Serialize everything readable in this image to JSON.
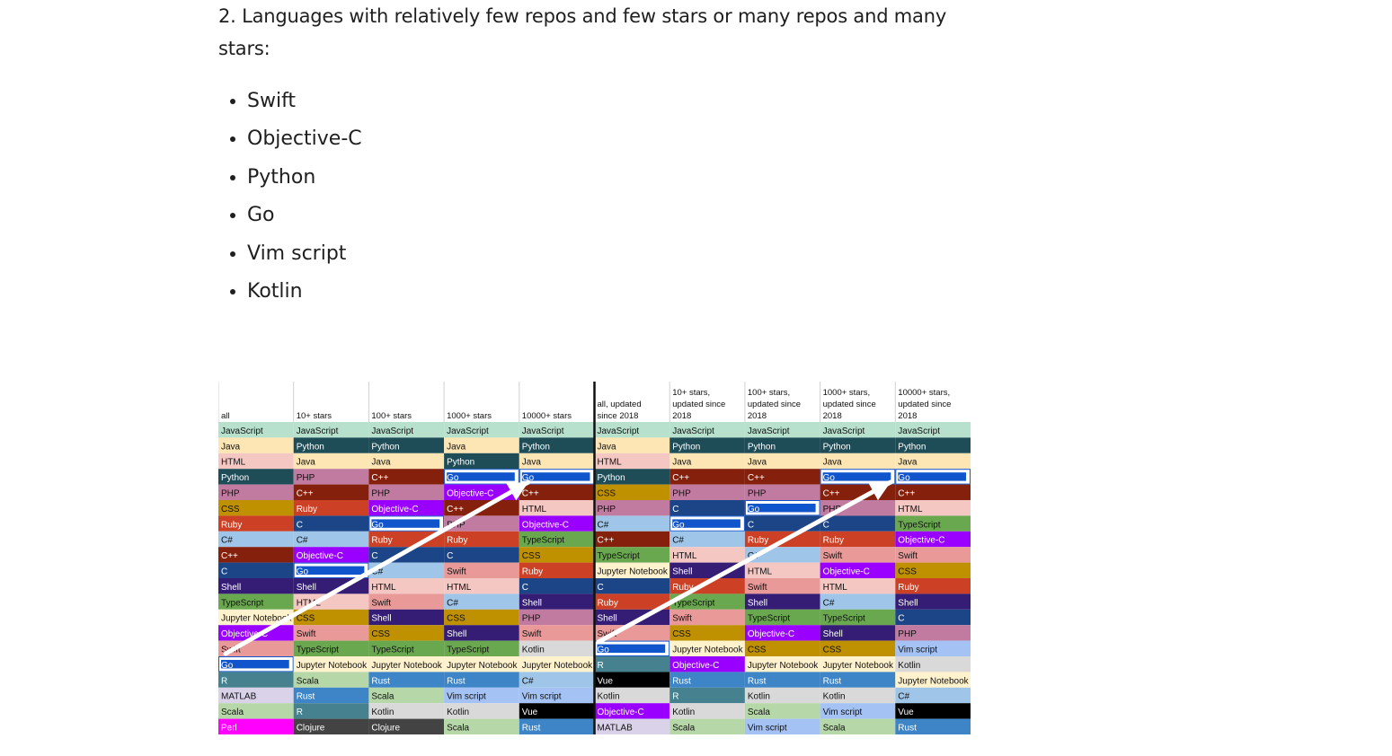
{
  "article": {
    "heading": "2. Languages with relatively few repos and few stars or many repos and many stars:",
    "languages": [
      "Swift",
      "Objective-C",
      "Python",
      "Go",
      "Vim script",
      "Kotlin"
    ]
  },
  "ranking_table": {
    "columns": [
      {
        "header": [
          "all"
        ],
        "rows": [
          "JavaScript",
          "Java",
          "HTML",
          "Python",
          "PHP",
          "CSS",
          "Ruby",
          "C#",
          "C++",
          "C",
          "Shell",
          "TypeScript",
          "Jupyter Notebook",
          "Objective-C",
          "Swift",
          "Go",
          "R",
          "MATLAB",
          "Scala",
          "Perl"
        ]
      },
      {
        "header": [
          "10+ stars"
        ],
        "rows": [
          "JavaScript",
          "Python",
          "Java",
          "PHP",
          "C++",
          "Ruby",
          "C",
          "C#",
          "Objective-C",
          "Go",
          "Shell",
          "HTML",
          "CSS",
          "Swift",
          "TypeScript",
          "Jupyter Notebook",
          "Scala",
          "Rust",
          "R",
          "Clojure"
        ]
      },
      {
        "header": [
          "100+ stars"
        ],
        "rows": [
          "JavaScript",
          "Python",
          "Java",
          "C++",
          "PHP",
          "Objective-C",
          "Go",
          "Ruby",
          "C",
          "C#",
          "HTML",
          "Swift",
          "Shell",
          "CSS",
          "TypeScript",
          "Jupyter Notebook",
          "Rust",
          "Scala",
          "Kotlin",
          "Clojure"
        ]
      },
      {
        "header": [
          "1000+ stars"
        ],
        "rows": [
          "JavaScript",
          "Java",
          "Python",
          "Go",
          "Objective-C",
          "C++",
          "PHP",
          "Ruby",
          "C",
          "Swift",
          "HTML",
          "C#",
          "CSS",
          "Shell",
          "TypeScript",
          "Jupyter Notebook",
          "Rust",
          "Vim script",
          "Kotlin",
          "Scala"
        ]
      },
      {
        "header": [
          "10000+ stars"
        ],
        "rows": [
          "JavaScript",
          "Python",
          "Java",
          "Go",
          "C++",
          "HTML",
          "Objective-C",
          "TypeScript",
          "CSS",
          "Ruby",
          "C",
          "Shell",
          "PHP",
          "Swift",
          "Kotlin",
          "Jupyter Notebook",
          "C#",
          "Vim script",
          "Vue",
          "Rust"
        ]
      },
      {
        "header": [
          "all, updated",
          "since 2018"
        ],
        "rows": [
          "JavaScript",
          "Java",
          "HTML",
          "Python",
          "CSS",
          "PHP",
          "C#",
          "C++",
          "TypeScript",
          "Jupyter Notebook",
          "C",
          "Ruby",
          "Shell",
          "Swift",
          "Go",
          "R",
          "Vue",
          "Kotlin",
          "Objective-C",
          "MATLAB"
        ]
      },
      {
        "header": [
          "10+ stars,",
          "updated since",
          "2018"
        ],
        "rows": [
          "JavaScript",
          "Python",
          "Java",
          "C++",
          "PHP",
          "C",
          "Go",
          "C#",
          "HTML",
          "Shell",
          "Ruby",
          "TypeScript",
          "Swift",
          "CSS",
          "Jupyter Notebook",
          "Objective-C",
          "Rust",
          "R",
          "Kotlin",
          "Scala"
        ]
      },
      {
        "header": [
          "100+ stars,",
          "updated since",
          "2018"
        ],
        "rows": [
          "JavaScript",
          "Python",
          "Java",
          "C++",
          "PHP",
          "Go",
          "C",
          "Ruby",
          "C#",
          "HTML",
          "Swift",
          "Shell",
          "TypeScript",
          "Objective-C",
          "CSS",
          "Jupyter Notebook",
          "Rust",
          "Kotlin",
          "Scala",
          "Vim script"
        ]
      },
      {
        "header": [
          "1000+ stars,",
          "updated since",
          "2018"
        ],
        "rows": [
          "JavaScript",
          "Python",
          "Java",
          "Go",
          "C++",
          "PHP",
          "C",
          "Ruby",
          "Swift",
          "Objective-C",
          "HTML",
          "C#",
          "TypeScript",
          "Shell",
          "CSS",
          "Jupyter Notebook",
          "Rust",
          "Kotlin",
          "Vim script",
          "Scala"
        ]
      },
      {
        "header": [
          "10000+ stars,",
          "updated since",
          "2018"
        ],
        "rows": [
          "JavaScript",
          "Python",
          "Java",
          "Go",
          "C++",
          "HTML",
          "TypeScript",
          "Objective-C",
          "Swift",
          "CSS",
          "Ruby",
          "Shell",
          "C",
          "PHP",
          "Vim script",
          "Kotlin",
          "Jupyter Notebook",
          "C#",
          "Vue",
          "Rust"
        ]
      }
    ],
    "language_colors": {
      "JavaScript": "#b7e1cd",
      "Java": "#fde6b3",
      "HTML": "#f4c7c3",
      "Python": "#1e4d58",
      "PHP": "#c27ba0",
      "CSS": "#bf9000",
      "Ruby": "#cc4125",
      "C#": "#9fc5e8",
      "C++": "#85200c",
      "C": "#1c4587",
      "Shell": "#351c75",
      "TypeScript": "#6aa84f",
      "Jupyter Notebook": "#fff2cc",
      "Objective-C": "#9900ff",
      "Swift": "#ea9999",
      "Go": "#1155cc",
      "R": "#45818e",
      "MATLAB": "#d9d2e9",
      "Scala": "#b6d7a8",
      "Perl": "#ff00ff",
      "Rust": "#3d85c6",
      "Clojure": "#434343",
      "Kotlin": "#d9d9d9",
      "Vim script": "#a4c2f4",
      "Vue": "#000000"
    },
    "light_text_languages": [
      "Python",
      "Go",
      "C++",
      "C",
      "Shell",
      "Clojure",
      "Vue",
      "Perl",
      "Objective-C",
      "Rust",
      "R",
      "Ruby"
    ],
    "highlight_languages": [
      "Go"
    ]
  }
}
